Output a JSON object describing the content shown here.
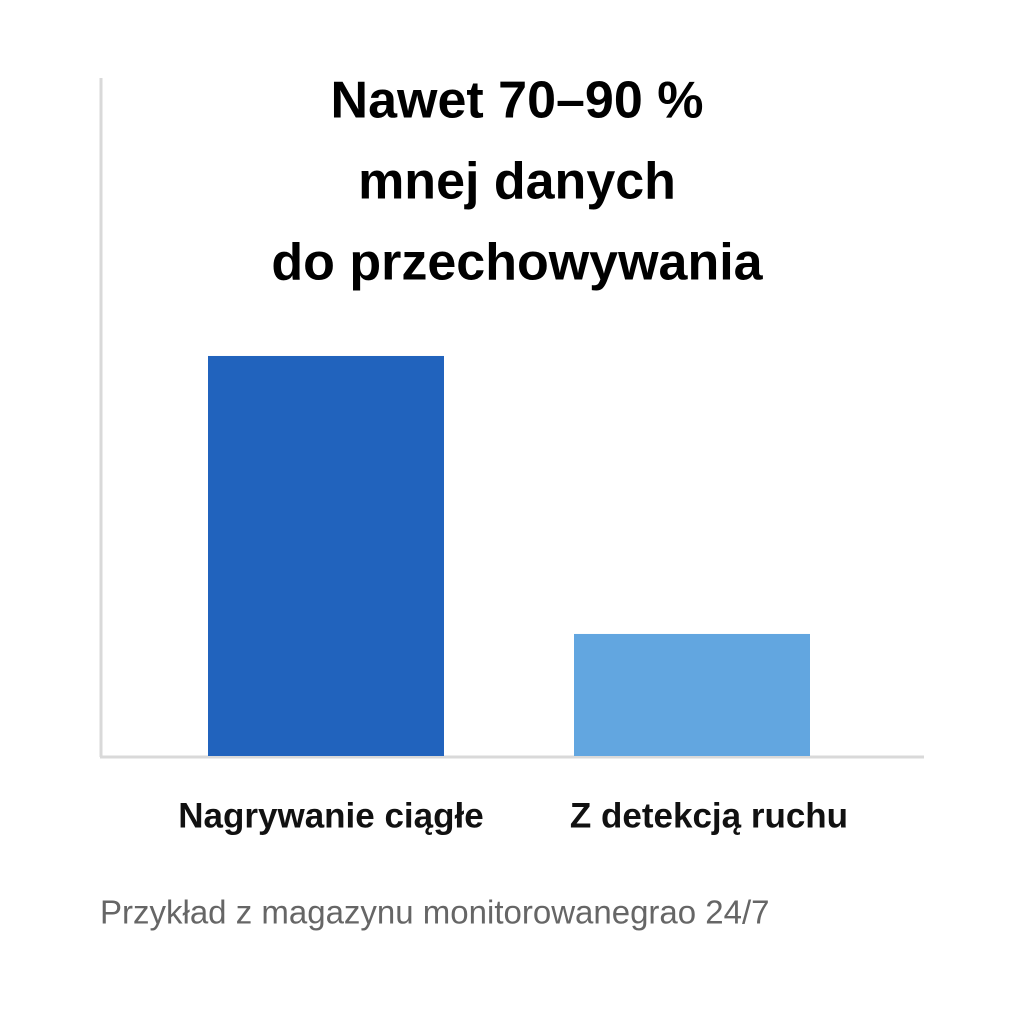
{
  "chart_data": {
    "type": "bar",
    "title": [
      "Nawet 70–90 %",
      "mnej danych",
      "do przechowywania"
    ],
    "categories": [
      "Nagrywanie ciągłe",
      "Z detekcją ruchu"
    ],
    "values": [
      59,
      18
    ],
    "colors": [
      "#2163bd",
      "#62a6e0"
    ],
    "ylim": [
      0,
      100
    ],
    "note": "Przykład z magazynu monitorowanegrao 24/7"
  }
}
